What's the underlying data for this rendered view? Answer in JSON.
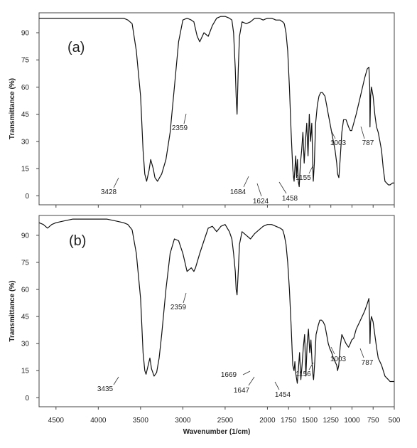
{
  "chart_data": [
    {
      "type": "line",
      "panel_label": "(a)",
      "ylabel": "Transmittance (%)",
      "xlabel": "",
      "xlim": [
        4700,
        500
      ],
      "ylim": [
        -5,
        101
      ],
      "y_ticks": [
        "90",
        "75",
        "60",
        "45",
        "30",
        "15",
        "0"
      ],
      "x_ticks": [],
      "series": [
        {
          "x": [
            4700,
            4500,
            4200,
            3900,
            3800,
            3700,
            3650,
            3600,
            3550,
            3500,
            3470,
            3450,
            3428,
            3400,
            3380,
            3350,
            3330,
            3300,
            3250,
            3200,
            3150,
            3100,
            3050,
            3000,
            2950,
            2900,
            2870,
            2850,
            2830,
            2800,
            2750,
            2700,
            2650,
            2600,
            2550,
            2500,
            2450,
            2420,
            2400,
            2380,
            2370,
            2359,
            2345,
            2330,
            2300,
            2250,
            2200,
            2150,
            2100,
            2050,
            2000,
            1950,
            1900,
            1850,
            1820,
            1800,
            1780,
            1760,
            1740,
            1720,
            1700,
            1690,
            1684,
            1675,
            1665,
            1655,
            1645,
            1635,
            1624,
            1610,
            1595,
            1580,
            1565,
            1550,
            1535,
            1520,
            1505,
            1490,
            1475,
            1465,
            1458,
            1445,
            1430,
            1410,
            1390,
            1370,
            1350,
            1320,
            1300,
            1280,
            1260,
            1240,
            1220,
            1200,
            1180,
            1170,
            1155,
            1140,
            1120,
            1100,
            1070,
            1040,
            1020,
            1003,
            980,
            950,
            900,
            850,
            820,
            800,
            790,
            787,
            780,
            770,
            750,
            730,
            710,
            690,
            670,
            650,
            630,
            610,
            590,
            570,
            550,
            520,
            500
          ],
          "y": [
            98,
            98,
            98,
            98,
            98,
            98,
            97,
            95,
            80,
            55,
            25,
            12,
            8,
            14,
            20,
            15,
            10,
            8,
            12,
            20,
            35,
            60,
            85,
            97,
            98,
            97,
            96,
            92,
            88,
            85,
            90,
            88,
            94,
            98,
            99,
            99,
            98,
            97,
            90,
            70,
            55,
            45,
            70,
            88,
            96,
            95,
            96,
            98,
            98,
            97,
            98,
            98,
            97,
            97,
            96,
            95,
            90,
            80,
            60,
            35,
            15,
            10,
            8,
            15,
            22,
            10,
            20,
            8,
            5,
            18,
            25,
            35,
            18,
            30,
            40,
            22,
            45,
            30,
            40,
            20,
            8,
            18,
            40,
            50,
            55,
            57,
            57,
            55,
            50,
            45,
            40,
            35,
            30,
            25,
            18,
            12,
            10,
            20,
            35,
            42,
            42,
            38,
            36,
            36,
            40,
            45,
            55,
            65,
            70,
            71,
            60,
            38,
            55,
            60,
            55,
            45,
            38,
            35,
            30,
            25,
            15,
            8,
            7,
            6,
            6,
            7,
            7
          ]
        }
      ],
      "annotations": [
        "3428",
        "2359",
        "1684",
        "1624",
        "1458",
        "1155",
        "1003",
        "787"
      ],
      "grid": false
    },
    {
      "type": "line",
      "panel_label": "(b)",
      "ylabel": "Transmittance (%)",
      "xlabel": "Wavenumber (1/cm)",
      "xlim": [
        4700,
        500
      ],
      "ylim": [
        -5,
        101
      ],
      "y_ticks": [
        "90",
        "75",
        "60",
        "45",
        "30",
        "15",
        "0"
      ],
      "x_ticks": [
        "4500",
        "4000",
        "3500",
        "3000",
        "2500",
        "2000",
        "1750",
        "1500",
        "1250",
        "1000",
        "750",
        "500"
      ],
      "series": [
        {
          "x": [
            4700,
            4650,
            4600,
            4550,
            4500,
            4400,
            4300,
            4200,
            4100,
            4000,
            3900,
            3800,
            3700,
            3650,
            3600,
            3550,
            3500,
            3470,
            3450,
            3435,
            3410,
            3390,
            3370,
            3340,
            3310,
            3280,
            3250,
            3200,
            3150,
            3100,
            3050,
            3000,
            2950,
            2900,
            2870,
            2850,
            2800,
            2750,
            2700,
            2650,
            2600,
            2550,
            2500,
            2450,
            2420,
            2400,
            2380,
            2370,
            2359,
            2345,
            2330,
            2300,
            2250,
            2200,
            2150,
            2100,
            2050,
            2000,
            1950,
            1900,
            1850,
            1820,
            1800,
            1780,
            1760,
            1740,
            1720,
            1700,
            1685,
            1675,
            1669,
            1660,
            1647,
            1635,
            1620,
            1605,
            1590,
            1575,
            1560,
            1545,
            1530,
            1515,
            1500,
            1485,
            1470,
            1460,
            1454,
            1440,
            1425,
            1400,
            1380,
            1360,
            1340,
            1320,
            1300,
            1280,
            1260,
            1240,
            1220,
            1200,
            1180,
            1170,
            1156,
            1140,
            1120,
            1100,
            1070,
            1040,
            1020,
            1003,
            980,
            950,
            900,
            850,
            820,
            800,
            790,
            787,
            780,
            770,
            750,
            730,
            710,
            690,
            670,
            650,
            630,
            610,
            590,
            570,
            550,
            520,
            500
          ],
          "y": [
            97,
            96,
            94,
            96,
            97,
            98,
            99,
            99,
            99,
            99,
            99,
            98,
            97,
            96,
            93,
            80,
            55,
            25,
            15,
            13,
            18,
            22,
            16,
            12,
            14,
            22,
            35,
            60,
            80,
            88,
            87,
            80,
            70,
            72,
            70,
            72,
            80,
            87,
            94,
            95,
            92,
            95,
            96,
            92,
            88,
            80,
            70,
            60,
            57,
            70,
            85,
            92,
            90,
            88,
            91,
            93,
            95,
            96,
            96,
            95,
            94,
            93,
            90,
            85,
            75,
            60,
            40,
            18,
            15,
            20,
            15,
            12,
            8,
            15,
            25,
            10,
            18,
            28,
            35,
            12,
            30,
            38,
            25,
            32,
            18,
            12,
            10,
            20,
            35,
            40,
            43,
            43,
            42,
            40,
            35,
            30,
            27,
            25,
            22,
            20,
            18,
            15,
            18,
            28,
            35,
            33,
            30,
            28,
            30,
            32,
            33,
            38,
            43,
            48,
            52,
            55,
            40,
            30,
            42,
            45,
            42,
            35,
            28,
            22,
            20,
            18,
            15,
            12,
            11,
            10,
            9,
            9,
            9
          ]
        }
      ],
      "annotations": [
        "3435",
        "2359",
        "1669",
        "1647",
        "1454",
        "1156",
        "1003",
        "787"
      ],
      "grid": false
    }
  ]
}
